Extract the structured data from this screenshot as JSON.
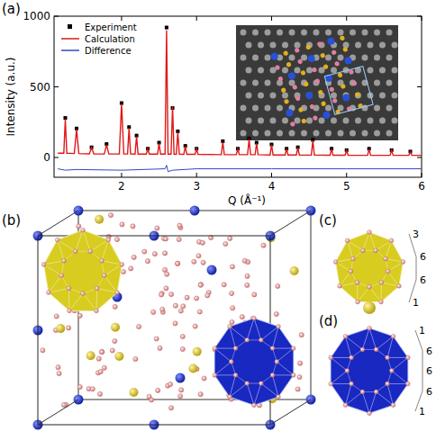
{
  "chart_data": {
    "type": "line",
    "label": "(a)",
    "xlabel": "Q (Å⁻¹)",
    "ylabel": "Intensity (a.u.)",
    "xlim": [
      1.1,
      6
    ],
    "ylim": [
      -140,
      1000
    ],
    "xticks": [
      2,
      3,
      4,
      5,
      6
    ],
    "yticks": [
      0,
      500,
      1000
    ],
    "legend": "top-left",
    "series": [
      {
        "name": "Experiment",
        "type": "scatter",
        "marker": "square",
        "color": "#000000",
        "x": [
          1.25,
          1.4,
          1.6,
          1.8,
          2.0,
          2.1,
          2.2,
          2.35,
          2.5,
          2.6,
          2.68,
          2.75,
          2.85,
          3.0,
          3.35,
          3.55,
          3.7,
          3.8,
          4.0,
          4.2,
          4.35,
          4.55,
          4.8,
          5.0,
          5.3,
          5.6,
          5.85
        ],
        "values": [
          280,
          205,
          72,
          95,
          385,
          215,
          155,
          62,
          105,
          920,
          350,
          185,
          82,
          62,
          115,
          62,
          135,
          105,
          92,
          62,
          72,
          125,
          62,
          52,
          62,
          52,
          42
        ]
      },
      {
        "name": "Calculation",
        "type": "line",
        "line_style": "solid",
        "color": "#e01818",
        "x": [
          1.15,
          1.23,
          1.25,
          1.27,
          1.37,
          1.4,
          1.43,
          1.57,
          1.6,
          1.63,
          1.77,
          1.8,
          1.83,
          1.97,
          2.0,
          2.03,
          2.08,
          2.1,
          2.12,
          2.18,
          2.2,
          2.22,
          2.33,
          2.35,
          2.37,
          2.48,
          2.5,
          2.52,
          2.58,
          2.6,
          2.62,
          2.66,
          2.68,
          2.7,
          2.73,
          2.75,
          2.77,
          2.83,
          2.85,
          2.87,
          2.98,
          3.0,
          3.02,
          3.33,
          3.35,
          3.37,
          3.53,
          3.55,
          3.57,
          3.68,
          3.7,
          3.72,
          3.78,
          3.8,
          3.82,
          3.98,
          4.0,
          4.02,
          4.18,
          4.2,
          4.22,
          4.33,
          4.35,
          4.37,
          4.53,
          4.55,
          4.57,
          4.78,
          4.8,
          4.82,
          4.98,
          5.0,
          5.02,
          5.28,
          5.3,
          5.32,
          5.58,
          5.6,
          5.62,
          5.83,
          5.85,
          5.87,
          6.0
        ],
        "values": [
          30,
          30,
          270,
          30,
          28,
          200,
          28,
          26,
          70,
          26,
          25,
          90,
          25,
          25,
          380,
          25,
          25,
          210,
          25,
          24,
          150,
          24,
          24,
          60,
          24,
          24,
          100,
          24,
          24,
          900,
          24,
          24,
          360,
          24,
          23,
          180,
          23,
          22,
          80,
          22,
          22,
          60,
          22,
          20,
          110,
          20,
          20,
          60,
          20,
          20,
          130,
          20,
          20,
          100,
          20,
          18,
          90,
          18,
          18,
          60,
          18,
          18,
          70,
          18,
          17,
          120,
          17,
          16,
          60,
          16,
          16,
          50,
          16,
          15,
          60,
          15,
          15,
          50,
          15,
          15,
          40,
          15,
          15
        ]
      },
      {
        "name": "Difference",
        "type": "line",
        "line_style": "solid",
        "color": "#3048c8",
        "x": [
          1.15,
          1.25,
          1.4,
          2.0,
          2.58,
          2.6,
          2.62,
          2.68,
          3.0,
          4.0,
          5.0,
          6.0
        ],
        "values": [
          -80,
          -90,
          -85,
          -90,
          -80,
          -55,
          -100,
          -90,
          -80,
          -80,
          -80,
          -80
        ]
      }
    ]
  },
  "panels": {
    "b": {
      "label": "(b)"
    },
    "c": {
      "label": "(c)",
      "layers": [
        3,
        6,
        6,
        1
      ]
    },
    "d": {
      "label": "(d)",
      "layers": [
        1,
        6,
        6,
        6,
        1
      ]
    }
  }
}
